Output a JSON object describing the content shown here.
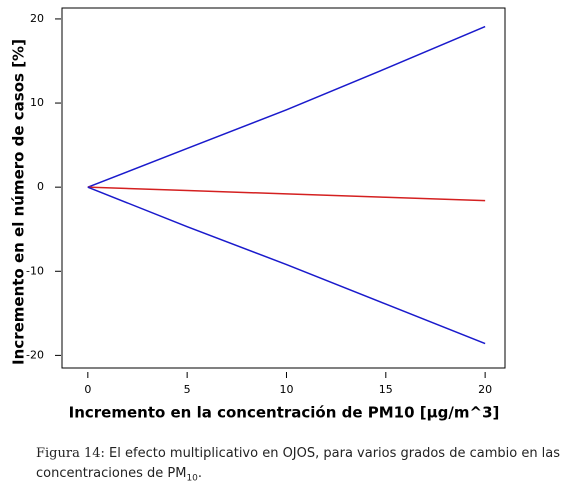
{
  "chart_data": {
    "type": "line",
    "xlabel": "Incremento en la concentración de PM10 [µg/m^3]",
    "ylabel": "Incremento en el número de casos [%]",
    "x": [
      0,
      5,
      10,
      15,
      20
    ],
    "series": [
      {
        "color": "#1a1acc",
        "values": [
          0,
          4.6,
          9.2,
          14.1,
          19.1
        ]
      },
      {
        "color": "#d42020",
        "values": [
          0,
          -0.4,
          -0.8,
          -1.2,
          -1.6
        ]
      },
      {
        "color": "#1a1acc",
        "values": [
          0,
          -4.7,
          -9.2,
          -13.9,
          -18.6
        ]
      }
    ],
    "xlim": [
      -1.3,
      21
    ],
    "ylim": [
      -21.5,
      21.3
    ],
    "xticks": [
      0,
      5,
      10,
      15,
      20
    ],
    "yticks": [
      -20,
      -10,
      0,
      10,
      20
    ]
  },
  "caption": {
    "label": "Figura 14:",
    "text": "El efecto multiplicativo en OJOS, para varios grados de cambio en las concentraciones de PM",
    "subscript": "10",
    "end": "."
  }
}
